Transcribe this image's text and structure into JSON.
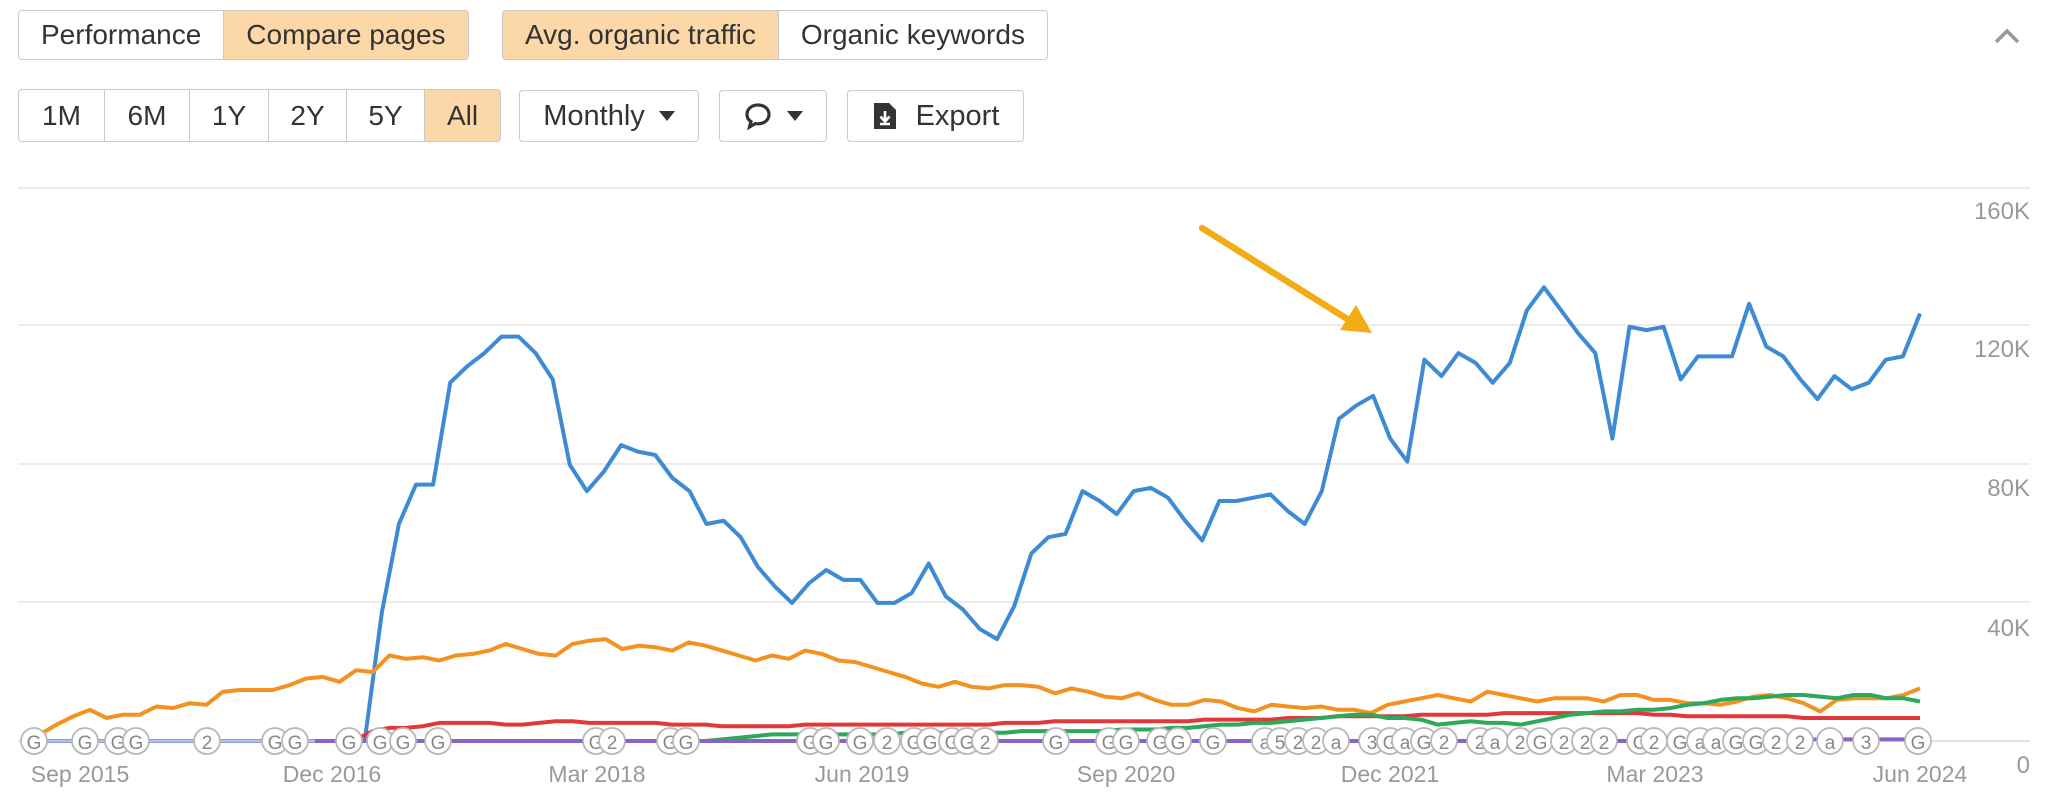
{
  "tabs_left": [
    {
      "label": "Performance",
      "active": false
    },
    {
      "label": "Compare pages",
      "active": true
    }
  ],
  "tabs_right": [
    {
      "label": "Avg. organic traffic",
      "active": true
    },
    {
      "label": "Organic keywords",
      "active": false
    }
  ],
  "collapse_icon": "chevron-up-icon",
  "ranges": [
    {
      "label": "1M",
      "active": false
    },
    {
      "label": "6M",
      "active": false
    },
    {
      "label": "1Y",
      "active": false
    },
    {
      "label": "2Y",
      "active": false
    },
    {
      "label": "5Y",
      "active": false
    },
    {
      "label": "All",
      "active": true
    }
  ],
  "interval": {
    "label": "Monthly",
    "icon": "caret-down-icon"
  },
  "annotations_button": {
    "icon": "comment-icon"
  },
  "export": {
    "label": "Export",
    "icon": "download-file-icon"
  },
  "colors": {
    "accent": "#fcd8a8",
    "blue": "#3e8bd5",
    "orange": "#f3921f",
    "red": "#e0383b",
    "green": "#2ea85a",
    "purple": "#8a63c6",
    "arrow": "#f3ab16",
    "grid": "#e6e6e6"
  },
  "chart_data": {
    "type": "line",
    "x_labels": [
      "Sep 2015",
      "Dec 2016",
      "Mar 2018",
      "Jun 2019",
      "Sep 2020",
      "Dec 2021",
      "Mar 2023",
      "Jun 2024"
    ],
    "y_ticks": [
      "160K",
      "120K",
      "80K",
      "40K",
      "0"
    ],
    "ylim": [
      0,
      160000
    ],
    "grid": true,
    "series": [
      {
        "color": "#3e8bd5",
        "values": [
          0,
          0,
          0,
          0,
          0,
          0,
          0,
          0,
          0,
          0,
          0,
          0,
          0,
          0,
          0,
          0,
          0,
          0,
          0,
          0,
          39000,
          66000,
          78000,
          78000,
          109000,
          114000,
          118000,
          123000,
          123000,
          118000,
          110000,
          84000,
          76000,
          82000,
          90000,
          88000,
          87000,
          80000,
          76000,
          66000,
          67000,
          62000,
          53000,
          47000,
          42000,
          48000,
          52000,
          49000,
          49000,
          42000,
          42000,
          45000,
          54000,
          44000,
          40000,
          34000,
          31000,
          41000,
          57000,
          62000,
          63000,
          76000,
          73000,
          69000,
          76000,
          77000,
          74000,
          67000,
          61000,
          73000,
          73000,
          74000,
          75000,
          70000,
          66000,
          76000,
          98000,
          102000,
          105000,
          92000,
          85000,
          116000,
          111000,
          118000,
          115000,
          109000,
          115000,
          131000,
          138000,
          131000,
          124000,
          118000,
          92000,
          126000,
          125000,
          126000,
          110000,
          117000,
          117000,
          117000,
          133000,
          120000,
          117000,
          110000,
          104000,
          111000,
          107000,
          109000,
          116000,
          117000,
          130000
        ],
        "start": 0
      },
      {
        "color": "#f3921f",
        "values": [
          2000,
          5000,
          7500,
          9500,
          7000,
          8000,
          8000,
          10500,
          10000,
          11500,
          11000,
          15000,
          15500,
          15500,
          15500,
          17000,
          19000,
          19500,
          18000,
          21500,
          21000,
          26000,
          25000,
          25500,
          24500,
          26000,
          26500,
          27500,
          29500,
          28000,
          26500,
          26000,
          29500,
          30500,
          31000,
          28000,
          29000,
          28500,
          27500,
          30000,
          29000,
          27500,
          26000,
          24500,
          26000,
          25000,
          27500,
          26500,
          24500,
          24000,
          22500,
          21000,
          19500,
          17500,
          16500,
          18000,
          16500,
          16000,
          17000,
          17000,
          16500,
          14500,
          16000,
          15000,
          13500,
          13000,
          14500,
          12500,
          11000,
          11000,
          12500,
          12000,
          10000,
          9000,
          11000,
          10500,
          10000,
          10500,
          9500,
          9500,
          8500,
          11000,
          12000,
          13000,
          14000,
          13000,
          12000,
          15000,
          14000,
          13000,
          12000,
          13000,
          13000,
          13000,
          12000,
          14000,
          14000,
          12500,
          12500,
          11500,
          11500,
          11000,
          12000,
          13500,
          14000,
          13000,
          11500,
          9000,
          12500,
          13000,
          13000,
          13000,
          14000,
          16000
        ],
        "start": 0
      },
      {
        "color": "#e0383b",
        "values": [
          0,
          0,
          0,
          0,
          0,
          0,
          0,
          0,
          0,
          0,
          0,
          0,
          0,
          0,
          0,
          0,
          0,
          0,
          0,
          500,
          3000,
          4000,
          4000,
          4500,
          5500,
          5500,
          5500,
          5500,
          5000,
          5000,
          5500,
          6000,
          6000,
          5500,
          5500,
          5500,
          5500,
          5500,
          5000,
          5000,
          5000,
          4500,
          4500,
          4500,
          4500,
          4500,
          5000,
          5000,
          5000,
          5000,
          5000,
          5000,
          5000,
          5000,
          5000,
          5000,
          5000,
          5000,
          5500,
          5500,
          5500,
          6000,
          6000,
          6000,
          6000,
          6000,
          6000,
          6000,
          6000,
          6000,
          6500,
          6500,
          6500,
          6500,
          6500,
          7000,
          7000,
          7000,
          7500,
          7500,
          7500,
          7500,
          7500,
          8000,
          8000,
          8000,
          8000,
          8000,
          8500,
          8500,
          8500,
          8500,
          8500,
          8500,
          8500,
          8500,
          8500,
          8000,
          8000,
          7500,
          7500,
          7500,
          7500,
          7500,
          7500,
          7500,
          7000,
          7000,
          7000,
          7000,
          7000,
          7000,
          7000,
          7000
        ],
        "start": 0
      },
      {
        "color": "#2ea85a",
        "values": [
          0,
          0,
          0,
          0,
          0,
          0,
          0,
          0,
          0,
          0,
          0,
          0,
          0,
          0,
          0,
          0,
          0,
          0,
          0,
          0,
          0,
          0,
          0,
          0,
          0,
          0,
          0,
          0,
          0,
          0,
          0,
          0,
          0,
          0,
          0,
          0,
          0,
          0,
          0,
          0,
          0,
          500,
          1000,
          1500,
          2000,
          2000,
          2000,
          2000,
          2000,
          2000,
          2000,
          2000,
          2500,
          2500,
          2500,
          2500,
          2500,
          2500,
          2500,
          3000,
          3000,
          3000,
          3000,
          3000,
          3000,
          3500,
          3500,
          3500,
          4000,
          4000,
          4500,
          5000,
          5000,
          5500,
          5500,
          6000,
          6500,
          7000,
          7500,
          8000,
          8000,
          7000,
          7000,
          6500,
          5000,
          5500,
          6000,
          5500,
          5500,
          5000,
          6000,
          7000,
          8000,
          8500,
          9000,
          9000,
          9500,
          9500,
          10000,
          11000,
          11500,
          12500,
          13000,
          13000,
          13500,
          14000,
          14000,
          13500,
          13000,
          14000,
          14000,
          13000,
          13000,
          12000
        ],
        "start": 0
      },
      {
        "color": "#8a63c6",
        "values": [
          0,
          0,
          0,
          0,
          0,
          0,
          0,
          0,
          0,
          0,
          0,
          0,
          0,
          0,
          0,
          0,
          0,
          0,
          0,
          0,
          0,
          0,
          0,
          0,
          0,
          0,
          0,
          0,
          0,
          0,
          0,
          0,
          0,
          0,
          0,
          0,
          0,
          0,
          0,
          0,
          0,
          0,
          0,
          0,
          0,
          0,
          0,
          0,
          0,
          0,
          0,
          0,
          0,
          0,
          0,
          0,
          0,
          0,
          0,
          0,
          0,
          0,
          0,
          0,
          0,
          0,
          0,
          0,
          0,
          0,
          0,
          0,
          0,
          0,
          0,
          0,
          0,
          0,
          0,
          0,
          0,
          0,
          0,
          0,
          0,
          0,
          0,
          0,
          0,
          0,
          0,
          0,
          0,
          0,
          0,
          0,
          0,
          0,
          0,
          500,
          500,
          500,
          500,
          500,
          500,
          500,
          500,
          500,
          500,
          500,
          500,
          500,
          500,
          500,
          500,
          500
        ],
        "start": 0
      }
    ],
    "markers": [
      "G",
      "G",
      "G",
      "G",
      "2",
      "G",
      "G",
      "G",
      "G",
      "G",
      "G",
      "G",
      "2",
      "G",
      "G",
      "G",
      "G",
      "G",
      "2",
      "G",
      "G",
      "G",
      "G",
      "2",
      "G",
      "G",
      "G",
      "G",
      "G",
      "G",
      "a",
      "5",
      "2",
      "2",
      "a",
      "3",
      "G",
      "a",
      "G",
      "2",
      "2",
      "a",
      "2",
      "G",
      "2",
      "2",
      "2",
      "G",
      "2",
      "G",
      "a",
      "a",
      "G",
      "G",
      "2",
      "2",
      "a",
      "3",
      "G"
    ]
  }
}
